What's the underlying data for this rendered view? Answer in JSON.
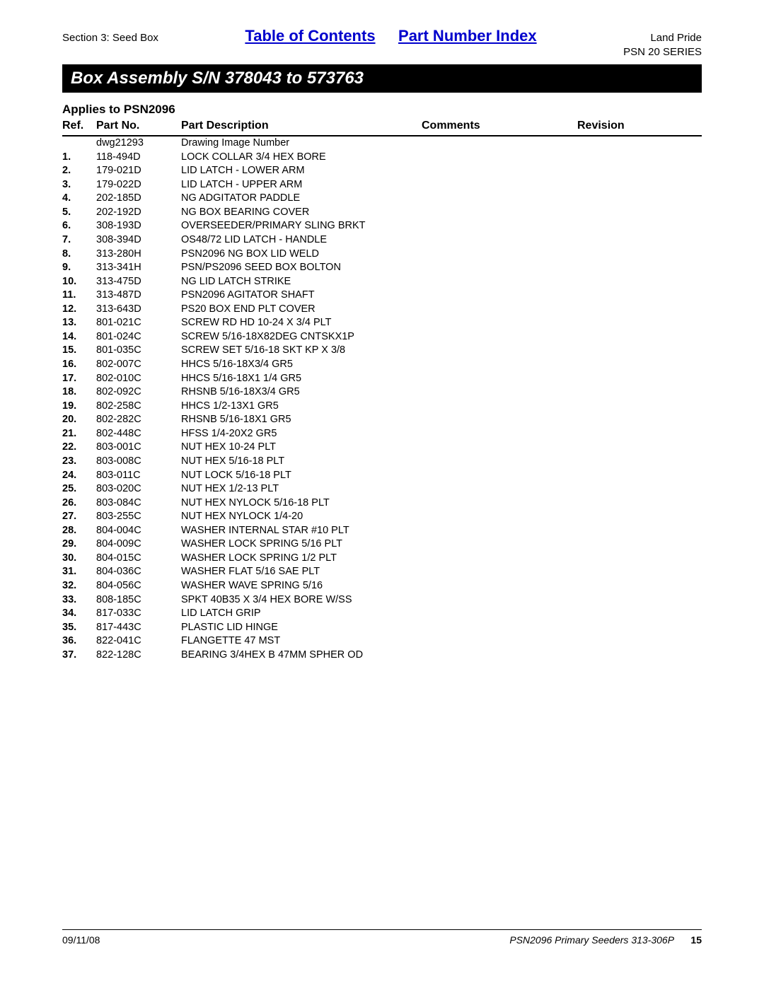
{
  "header": {
    "section_label": "Section 3: Seed Box",
    "toc_link": "Table of Contents",
    "pni_link": "Part Number Index",
    "brand": "Land Pride",
    "series": "PSN 20 SERIES"
  },
  "title": "Box Assembly S/N 378043 to 573763",
  "applies": "Applies to PSN2096",
  "columns": {
    "ref": "Ref.",
    "part": "Part No.",
    "desc": "Part Description",
    "comments": "Comments",
    "revision": "Revision"
  },
  "rows": [
    {
      "ref": "",
      "part": "dwg21293",
      "desc": "Drawing Image Number"
    },
    {
      "ref": "1.",
      "part": "118-494D",
      "desc": "LOCK COLLAR 3/4 HEX BORE"
    },
    {
      "ref": "2.",
      "part": "179-021D",
      "desc": "LID LATCH - LOWER ARM"
    },
    {
      "ref": "3.",
      "part": "179-022D",
      "desc": "LID LATCH - UPPER ARM"
    },
    {
      "ref": "4.",
      "part": "202-185D",
      "desc": "NG ADGITATOR PADDLE"
    },
    {
      "ref": "5.",
      "part": "202-192D",
      "desc": "NG BOX BEARING COVER"
    },
    {
      "ref": "6.",
      "part": "308-193D",
      "desc": "OVERSEEDER/PRIMARY SLING BRKT"
    },
    {
      "ref": "7.",
      "part": "308-394D",
      "desc": "OS48/72 LID LATCH - HANDLE"
    },
    {
      "ref": "8.",
      "part": "313-280H",
      "desc": "PSN2096 NG BOX LID WELD"
    },
    {
      "ref": "9.",
      "part": "313-341H",
      "desc": "PSN/PS2096 SEED BOX BOLTON"
    },
    {
      "ref": "10.",
      "part": "313-475D",
      "desc": "NG LID LATCH STRIKE"
    },
    {
      "ref": "11.",
      "part": "313-487D",
      "desc": "PSN2096 AGITATOR SHAFT"
    },
    {
      "ref": "12.",
      "part": "313-643D",
      "desc": "PS20 BOX END PLT COVER"
    },
    {
      "ref": "13.",
      "part": "801-021C",
      "desc": "SCREW RD HD 10-24 X 3/4 PLT"
    },
    {
      "ref": "14.",
      "part": "801-024C",
      "desc": "SCREW 5/16-18X82DEG CNTSKX1P"
    },
    {
      "ref": "15.",
      "part": "801-035C",
      "desc": "SCREW SET 5/16-18 SKT KP X 3/8"
    },
    {
      "ref": "16.",
      "part": "802-007C",
      "desc": "HHCS 5/16-18X3/4 GR5"
    },
    {
      "ref": "17.",
      "part": "802-010C",
      "desc": "HHCS 5/16-18X1 1/4 GR5"
    },
    {
      "ref": "18.",
      "part": "802-092C",
      "desc": "RHSNB 5/16-18X3/4 GR5"
    },
    {
      "ref": "19.",
      "part": "802-258C",
      "desc": "HHCS 1/2-13X1 GR5"
    },
    {
      "ref": "20.",
      "part": "802-282C",
      "desc": "RHSNB 5/16-18X1 GR5"
    },
    {
      "ref": "21.",
      "part": "802-448C",
      "desc": "HFSS 1/4-20X2 GR5"
    },
    {
      "ref": "22.",
      "part": "803-001C",
      "desc": "NUT HEX 10-24 PLT"
    },
    {
      "ref": "23.",
      "part": "803-008C",
      "desc": "NUT HEX 5/16-18 PLT"
    },
    {
      "ref": "24.",
      "part": "803-011C",
      "desc": "NUT LOCK 5/16-18 PLT"
    },
    {
      "ref": "25.",
      "part": "803-020C",
      "desc": "NUT HEX 1/2-13 PLT"
    },
    {
      "ref": "26.",
      "part": "803-084C",
      "desc": "NUT HEX NYLOCK 5/16-18 PLT"
    },
    {
      "ref": "27.",
      "part": "803-255C",
      "desc": "NUT HEX NYLOCK 1/4-20"
    },
    {
      "ref": "28.",
      "part": "804-004C",
      "desc": "WASHER INTERNAL STAR #10 PLT"
    },
    {
      "ref": "29.",
      "part": "804-009C",
      "desc": "WASHER LOCK SPRING 5/16 PLT"
    },
    {
      "ref": "30.",
      "part": "804-015C",
      "desc": "WASHER LOCK SPRING 1/2 PLT"
    },
    {
      "ref": "31.",
      "part": "804-036C",
      "desc": "WASHER FLAT 5/16 SAE PLT"
    },
    {
      "ref": "32.",
      "part": "804-056C",
      "desc": "WASHER WAVE SPRING 5/16"
    },
    {
      "ref": "33.",
      "part": "808-185C",
      "desc": "SPKT 40B35 X 3/4 HEX BORE W/SS"
    },
    {
      "ref": "34.",
      "part": "817-033C",
      "desc": "LID LATCH GRIP"
    },
    {
      "ref": "35.",
      "part": "817-443C",
      "desc": "PLASTIC LID HINGE"
    },
    {
      "ref": "36.",
      "part": "822-041C",
      "desc": "FLANGETTE 47 MST"
    },
    {
      "ref": "37.",
      "part": "822-128C",
      "desc": "BEARING 3/4HEX B 47MM SPHER OD"
    }
  ],
  "footer": {
    "date": "09/11/08",
    "doc": "PSN2096 Primary Seeders 313-306P",
    "page": "15"
  }
}
